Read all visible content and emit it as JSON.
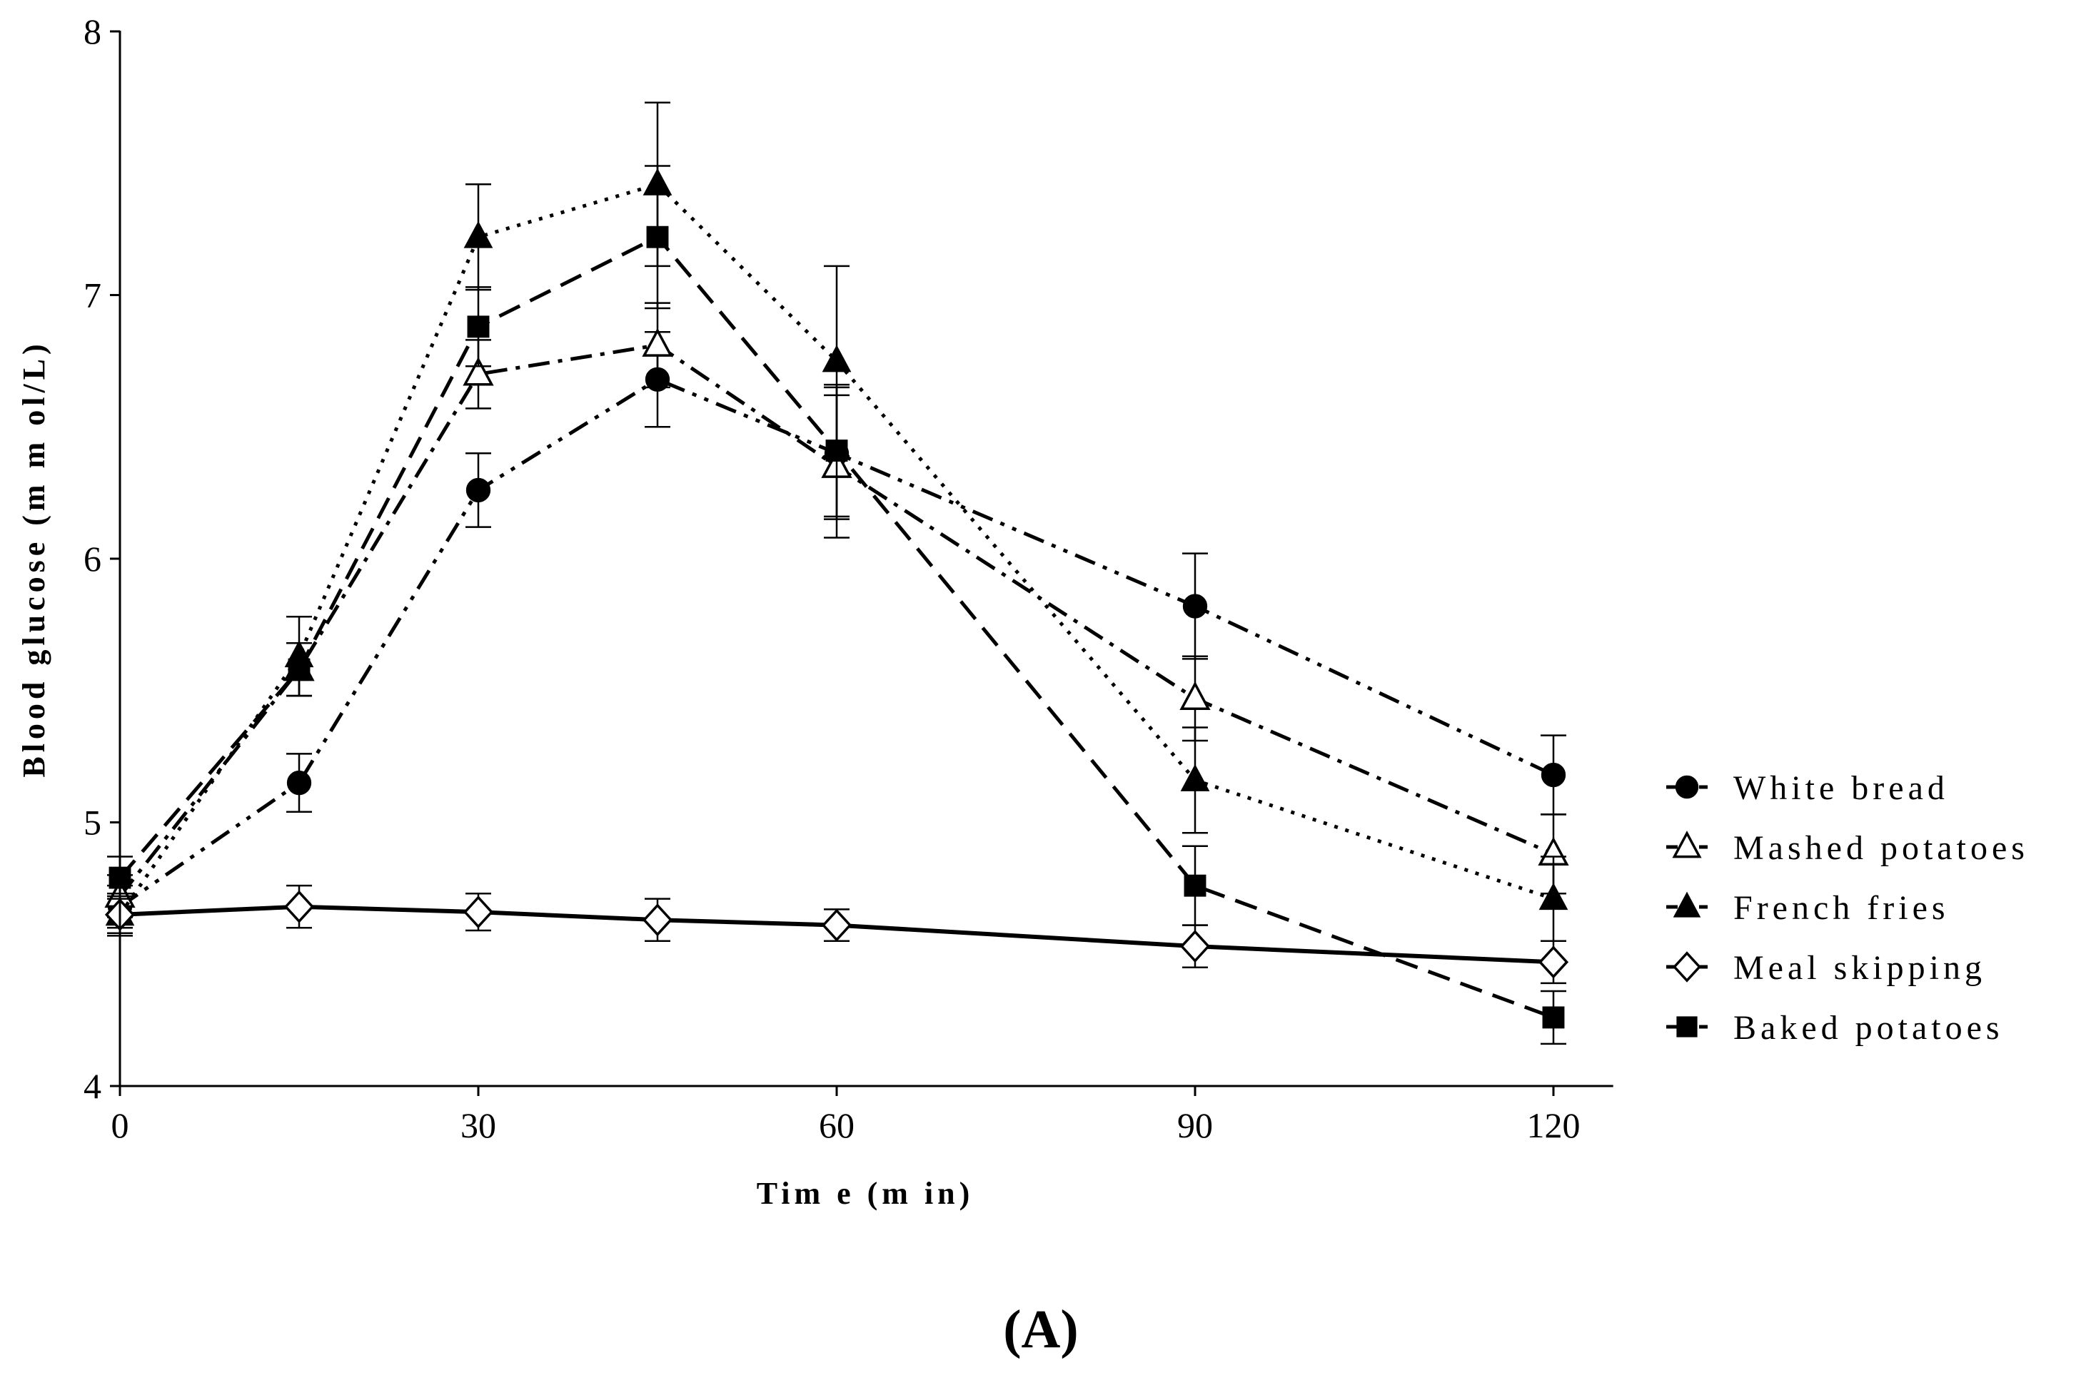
{
  "chart_data": {
    "type": "line",
    "title": "",
    "panel_label": "(A)",
    "xlabel": "Tim e (m in)",
    "ylabel": "Blood glucose (m m ol/L)",
    "xlim": [
      0,
      125
    ],
    "ylim": [
      4,
      8
    ],
    "x_ticks": [
      0,
      30,
      60,
      90,
      120
    ],
    "x_tick_labels": [
      "0",
      "30",
      "60",
      "90",
      "120"
    ],
    "y_ticks": [
      4,
      5,
      6,
      7,
      8
    ],
    "y_tick_labels": [
      "4",
      "5",
      "6",
      "7",
      "8"
    ],
    "grid": false,
    "legend_position": "right",
    "x": [
      0,
      15,
      30,
      45,
      60,
      90,
      120
    ],
    "series": [
      {
        "name": "White bread",
        "marker": "circle-filled",
        "line_style": "dash-dot-dot",
        "values": [
          4.68,
          5.15,
          6.26,
          6.68,
          6.4,
          5.82,
          5.18
        ],
        "errors": [
          0.08,
          0.11,
          0.14,
          0.18,
          0.25,
          0.2,
          0.15
        ]
      },
      {
        "name": "Mashed potatoes",
        "marker": "triangle-open",
        "line_style": "dash-dot",
        "values": [
          4.72,
          5.58,
          6.7,
          6.81,
          6.35,
          5.47,
          4.88
        ],
        "errors": [
          0.08,
          0.1,
          0.13,
          0.16,
          0.27,
          0.16,
          0.15
        ]
      },
      {
        "name": "French fries",
        "marker": "triangle-filled",
        "line_style": "dotted",
        "values": [
          4.65,
          5.63,
          7.22,
          7.42,
          6.75,
          5.16,
          4.71
        ],
        "errors": [
          0.08,
          0.15,
          0.2,
          0.31,
          0.36,
          0.2,
          0.16
        ]
      },
      {
        "name": "Meal skipping",
        "marker": "diamond-open",
        "line_style": "solid",
        "values": [
          4.65,
          4.68,
          4.66,
          4.63,
          4.61,
          4.53,
          4.47
        ],
        "errors": [
          0.07,
          0.08,
          0.07,
          0.08,
          0.06,
          0.08,
          0.08
        ]
      },
      {
        "name": "Baked potatoes",
        "marker": "square-filled",
        "line_style": "dashed",
        "values": [
          4.79,
          5.58,
          6.88,
          7.22,
          6.41,
          4.76,
          4.26
        ],
        "errors": [
          0.08,
          0.1,
          0.15,
          0.27,
          0.25,
          0.15,
          0.1
        ]
      }
    ]
  }
}
